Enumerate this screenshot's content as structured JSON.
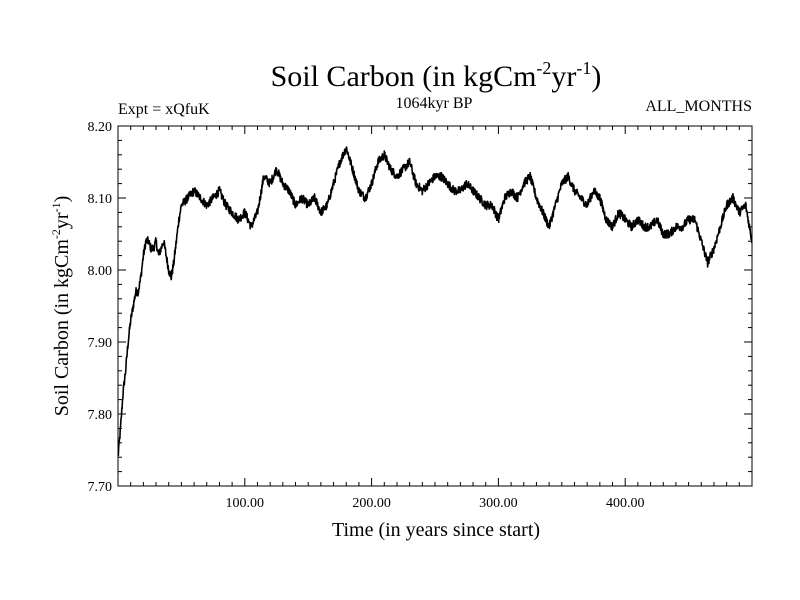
{
  "chart_data": {
    "type": "line",
    "title_main": "Soil Carbon (in kgCm",
    "title_sup1": "-2",
    "title_mid": "yr",
    "title_sup2": "-1",
    "title_end": ")",
    "subtitle_left": "Expt = xQfuK",
    "subtitle_center": "1064kyr BP",
    "subtitle_right": "ALL_MONTHS",
    "xlabel": "Time (in years since start)",
    "ylabel_main": "Soil Carbon (in kgCm",
    "ylabel_sup1": "-2",
    "ylabel_mid": "yr",
    "ylabel_sup2": "-1",
    "ylabel_end": ")",
    "xlim": [
      0,
      500
    ],
    "ylim": [
      7.7,
      8.2
    ],
    "x_ticks": [
      {
        "value": 100,
        "label": "100.00"
      },
      {
        "value": 200,
        "label": "200.00"
      },
      {
        "value": 300,
        "label": "300.00"
      },
      {
        "value": 400,
        "label": "400.00"
      }
    ],
    "y_ticks": [
      {
        "value": 7.7,
        "label": "7.70"
      },
      {
        "value": 7.8,
        "label": "7.80"
      },
      {
        "value": 7.9,
        "label": "7.90"
      },
      {
        "value": 8.0,
        "label": "8.00"
      },
      {
        "value": 8.1,
        "label": "8.10"
      },
      {
        "value": 8.2,
        "label": "8.20"
      }
    ],
    "series": [
      {
        "name": "Soil Carbon",
        "color": "#000000",
        "x": [
          0,
          2,
          4,
          6,
          8,
          10,
          12,
          14,
          16,
          18,
          20,
          22,
          24,
          26,
          28,
          30,
          32,
          34,
          36,
          38,
          40,
          42,
          44,
          46,
          48,
          50,
          55,
          60,
          65,
          70,
          75,
          80,
          85,
          90,
          95,
          100,
          105,
          110,
          115,
          120,
          125,
          130,
          135,
          140,
          145,
          150,
          155,
          160,
          165,
          170,
          175,
          180,
          185,
          190,
          195,
          200,
          205,
          210,
          215,
          220,
          225,
          230,
          235,
          240,
          245,
          250,
          255,
          260,
          265,
          270,
          275,
          280,
          285,
          290,
          295,
          300,
          305,
          310,
          315,
          320,
          325,
          330,
          335,
          340,
          345,
          350,
          355,
          360,
          365,
          370,
          375,
          380,
          385,
          390,
          395,
          400,
          405,
          410,
          415,
          420,
          425,
          430,
          435,
          440,
          445,
          450,
          455,
          460,
          465,
          470,
          475,
          480,
          485,
          490,
          495,
          500
        ],
        "y": [
          7.74,
          7.78,
          7.83,
          7.86,
          7.9,
          7.93,
          7.95,
          7.97,
          7.97,
          7.99,
          8.02,
          8.04,
          8.04,
          8.03,
          8.03,
          8.04,
          8.02,
          8.03,
          8.04,
          8.02,
          8.0,
          7.99,
          8.01,
          8.04,
          8.07,
          8.09,
          8.1,
          8.11,
          8.1,
          8.09,
          8.1,
          8.11,
          8.09,
          8.08,
          8.07,
          8.08,
          8.06,
          8.08,
          8.13,
          8.12,
          8.14,
          8.12,
          8.11,
          8.09,
          8.1,
          8.09,
          8.1,
          8.08,
          8.09,
          8.12,
          8.15,
          8.17,
          8.14,
          8.11,
          8.1,
          8.12,
          8.15,
          8.16,
          8.14,
          8.13,
          8.14,
          8.15,
          8.12,
          8.11,
          8.12,
          8.13,
          8.13,
          8.12,
          8.11,
          8.11,
          8.12,
          8.11,
          8.1,
          8.09,
          8.09,
          8.07,
          8.1,
          8.11,
          8.1,
          8.12,
          8.13,
          8.1,
          8.08,
          8.06,
          8.09,
          8.12,
          8.13,
          8.11,
          8.1,
          8.09,
          8.11,
          8.1,
          8.07,
          8.06,
          8.08,
          8.07,
          8.06,
          8.07,
          8.06,
          8.06,
          8.07,
          8.05,
          8.05,
          8.06,
          8.06,
          8.07,
          8.07,
          8.04,
          8.01,
          8.03,
          8.06,
          8.09,
          8.1,
          8.08,
          8.09,
          8.04
        ]
      }
    ]
  }
}
